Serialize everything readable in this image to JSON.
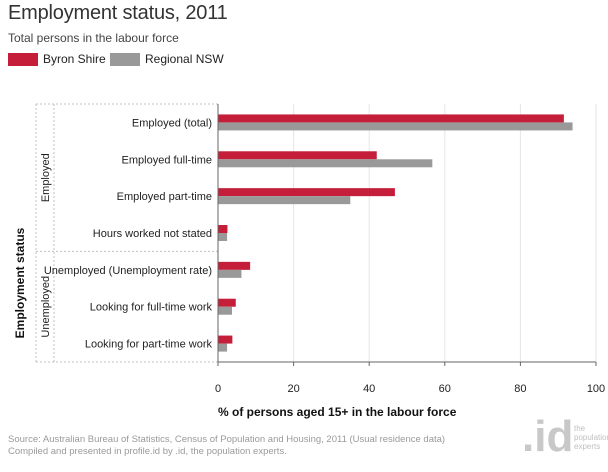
{
  "header": {
    "title": "Employment status, 2011",
    "subtitle": "Total persons in the labour force"
  },
  "footer": {
    "source_line1": "Source: Australian Bureau of Statistics, Census of Population and Housing, 2011 (Usual residence data)",
    "source_line2": "Compiled and presented in profile.id by .id, the population experts."
  },
  "logo": {
    "mark": ".id",
    "text_line1": "the",
    "text_line2": "population",
    "text_line3": "experts"
  },
  "colors": {
    "byron": "#c41e3a",
    "regional": "#999999",
    "grid": "#e6e6e6",
    "dotted": "#c0c0c0",
    "axis": "#666666"
  },
  "chart_data": {
    "type": "bar",
    "orientation": "horizontal",
    "title": "Employment status, 2011",
    "subtitle": "Total persons in the labour force",
    "xlabel": "% of persons aged 15+ in the labour force",
    "ylabel": "Employment status",
    "xlim": [
      0,
      100
    ],
    "xticks": [
      0,
      20,
      40,
      60,
      80,
      100
    ],
    "grid": true,
    "legend_position": "top-left",
    "categories": [
      "Employed (total)",
      "Employed full-time",
      "Employed part-time",
      "Hours worked not stated",
      "Unemployed (Unemployment rate)",
      "Looking for full-time work",
      "Looking for part-time work"
    ],
    "groups": [
      {
        "label": "Employed",
        "categories": [
          0,
          1,
          2,
          3
        ]
      },
      {
        "label": "Unemployed",
        "categories": [
          4,
          5,
          6
        ]
      }
    ],
    "series": [
      {
        "name": "Byron Shire",
        "color": "#c41e3a",
        "values": [
          91.5,
          42.0,
          46.8,
          2.5,
          8.5,
          4.7,
          3.8
        ]
      },
      {
        "name": "Regional NSW",
        "color": "#999999",
        "values": [
          93.8,
          56.7,
          35.0,
          2.4,
          6.2,
          3.7,
          2.4
        ]
      }
    ]
  }
}
